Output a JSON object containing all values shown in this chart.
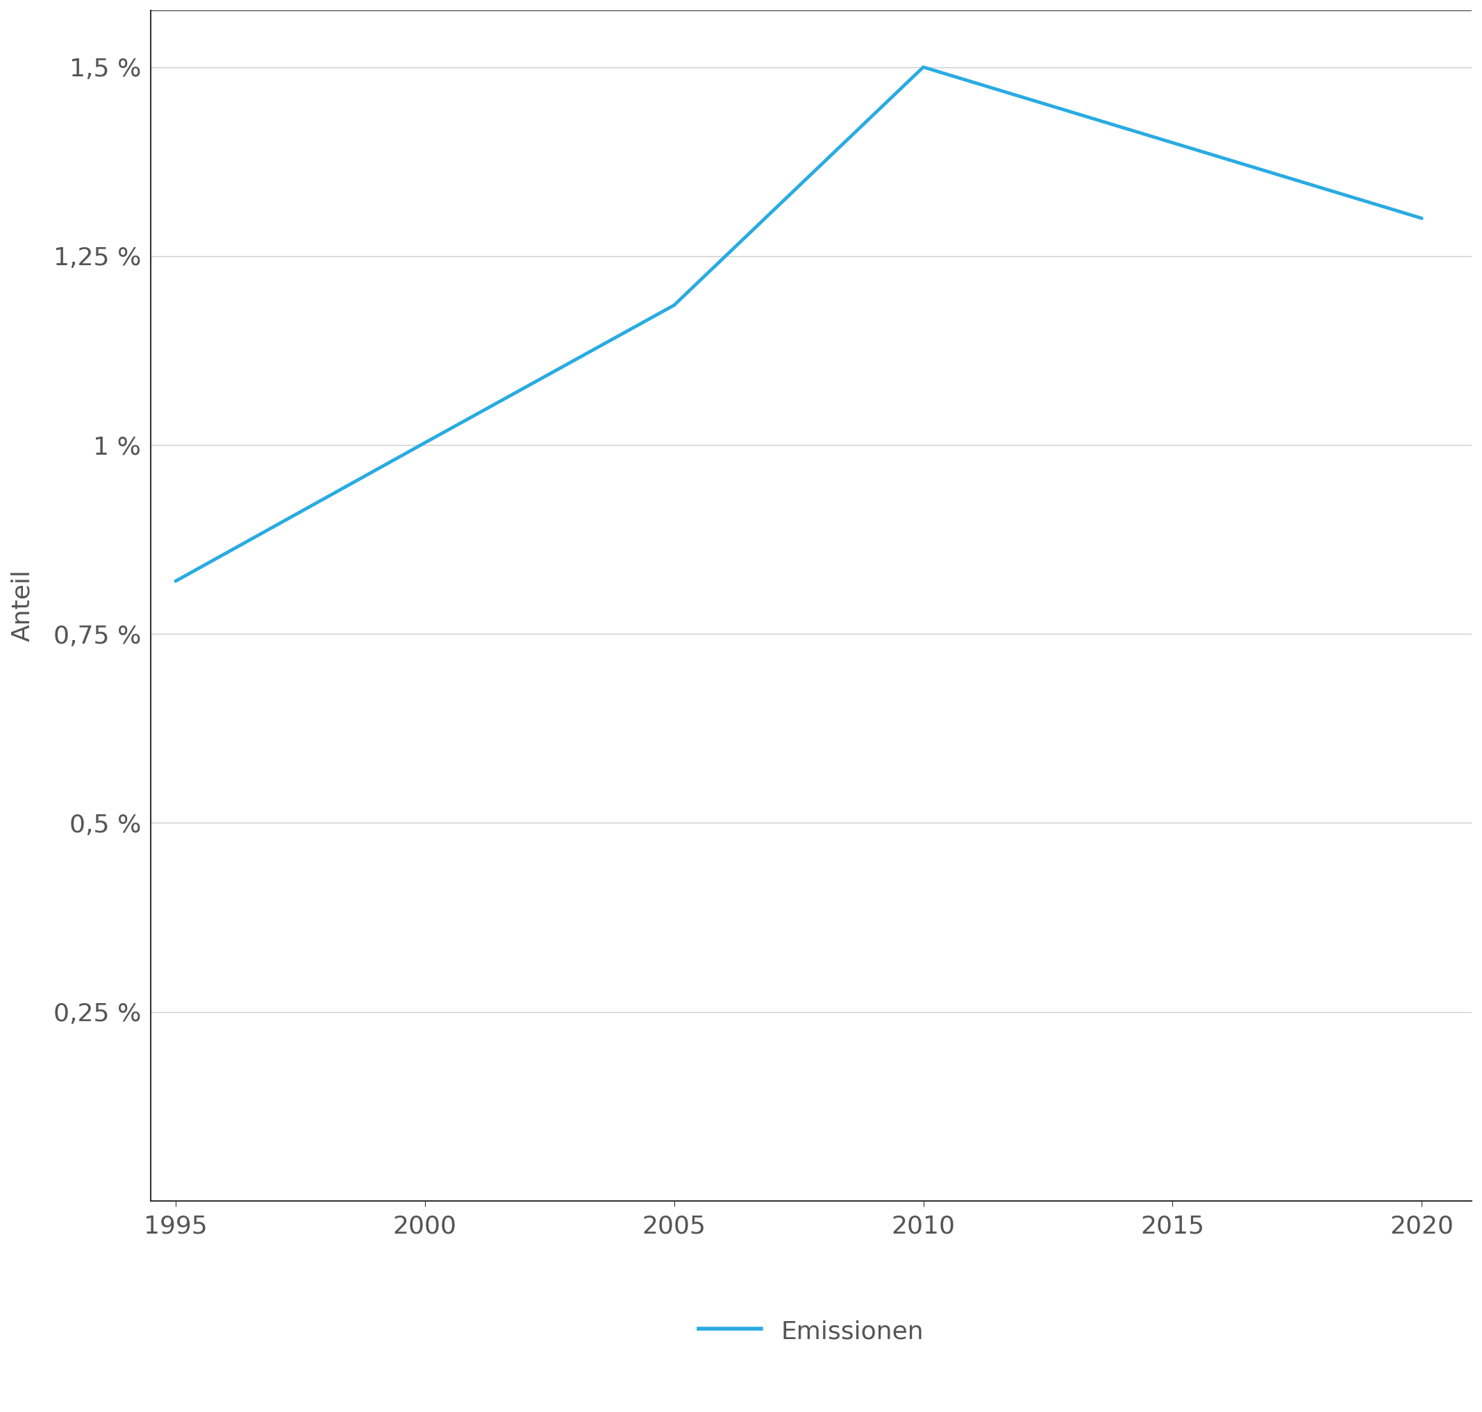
{
  "x": [
    1995,
    2000,
    2005,
    2010,
    2015,
    2020
  ],
  "y": [
    0.0082,
    0.01003,
    0.01185,
    0.015,
    0.014,
    0.013
  ],
  "line_color": "#29ABE2",
  "line_width": 3.5,
  "ylabel": "Anteil",
  "yticks": [
    0.0025,
    0.005,
    0.0075,
    0.01,
    0.0125,
    0.015
  ],
  "ytick_labels": [
    "0,25 %",
    "0,5 %",
    "0,75 %",
    "1 %",
    "1,25 %",
    "1,5 %"
  ],
  "xticks": [
    1995,
    2000,
    2005,
    2010,
    2015,
    2020
  ],
  "ylim": [
    0.0,
    0.01575
  ],
  "xlim": [
    1994.5,
    2021.0
  ],
  "legend_label": "Emissionen",
  "background_color": "#ffffff",
  "grid_color": "#cccccc",
  "text_color": "#555555",
  "axis_label_fontsize": 26,
  "tick_fontsize": 26,
  "legend_fontsize": 26,
  "spine_color": "#333333"
}
